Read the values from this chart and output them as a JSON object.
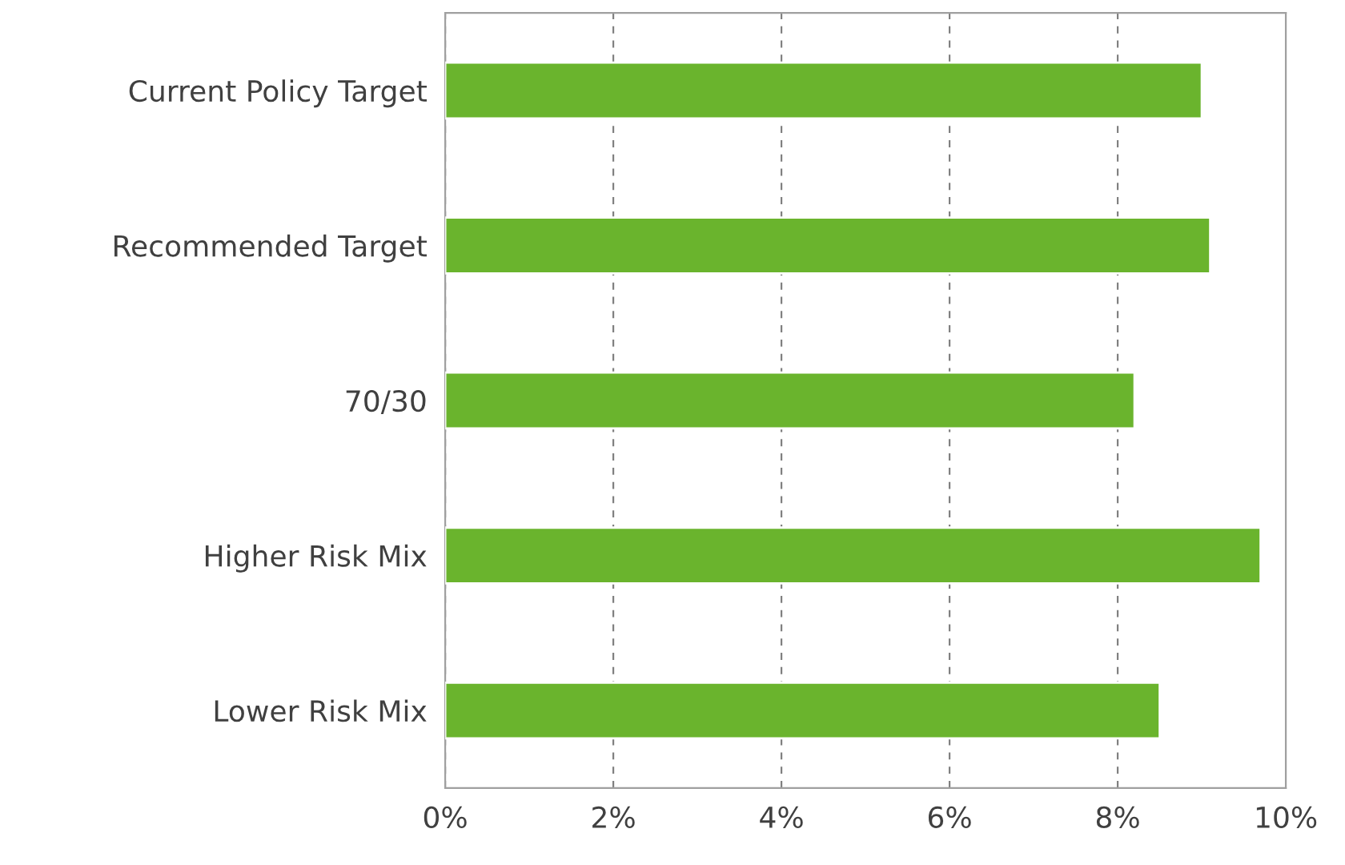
{
  "chart_data": {
    "type": "bar",
    "orientation": "horizontal",
    "categories": [
      "Current Policy Target",
      "Recommended Target",
      "70/30",
      "Higher Risk Mix",
      "Lower Risk Mix"
    ],
    "values": [
      9.0,
      9.1,
      8.2,
      9.7,
      8.5
    ],
    "color": "#6ab42d",
    "xlim": [
      0,
      10
    ],
    "xticks": [
      {
        "value": 0,
        "label": "0%"
      },
      {
        "value": 2,
        "label": "2%"
      },
      {
        "value": 4,
        "label": "4%"
      },
      {
        "value": 6,
        "label": "6%"
      },
      {
        "value": 8,
        "label": "8%"
      },
      {
        "value": 10,
        "label": "10%"
      }
    ],
    "grid": "x",
    "legend": false
  }
}
